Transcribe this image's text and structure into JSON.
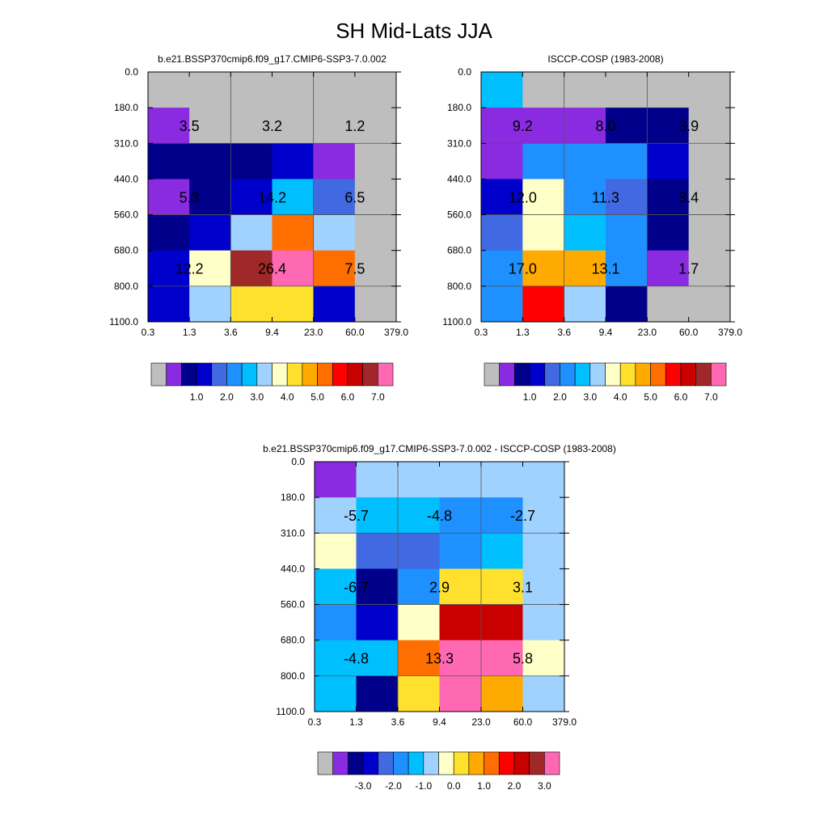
{
  "title": "SH Mid-Lats JJA",
  "palettes": {
    "abs": [
      "#bebebe",
      "#8a2be2",
      "#00008b",
      "#0000cd",
      "#4169e1",
      "#1e90ff",
      "#00bfff",
      "#a0d2ff",
      "#ffffc8",
      "#ffe12d",
      "#ffaa00",
      "#ff6e00",
      "#ff0000",
      "#c80000",
      "#a02828",
      "#ff69b4"
    ],
    "diff": [
      "#bebebe",
      "#8a2be2",
      "#00008b",
      "#0000cd",
      "#4169e1",
      "#1e90ff",
      "#00bfff",
      "#a0d2ff",
      "#ffffc8",
      "#ffe12d",
      "#ffaa00",
      "#ff6e00",
      "#ff0000",
      "#c80000",
      "#a02828",
      "#ff69b4"
    ]
  },
  "chart_data": [
    {
      "type": "heatmap",
      "title": "b.e21.BSSP370cmip6.f09_g17.CMIP6-SSP3-7.0.002",
      "x_ticks": [
        "0.3",
        "1.3",
        "3.6",
        "9.4",
        "23.0",
        "60.0",
        "379.0"
      ],
      "y_ticks": [
        "0.0",
        "180.0",
        "310.0",
        "440.0",
        "560.0",
        "680.0",
        "800.0",
        "1100.0"
      ],
      "cells": [
        [
          0,
          0,
          0,
          0,
          0,
          0
        ],
        [
          1,
          0,
          0,
          0,
          0,
          0
        ],
        [
          2,
          2,
          2,
          3,
          1,
          0
        ],
        [
          1,
          2,
          3,
          6,
          4,
          0
        ],
        [
          2,
          3,
          7,
          11,
          7,
          0
        ],
        [
          3,
          8,
          14,
          15,
          11,
          0
        ],
        [
          3,
          7,
          9,
          9,
          3,
          0
        ]
      ],
      "annotations": [
        {
          "row": 1,
          "col": 1,
          "text": "3.5"
        },
        {
          "row": 1,
          "col": 3,
          "text": "3.2"
        },
        {
          "row": 1,
          "col": 5,
          "text": "1.2"
        },
        {
          "row": 3,
          "col": 1,
          "text": "5.3"
        },
        {
          "row": 3,
          "col": 3,
          "text": "14.2"
        },
        {
          "row": 3,
          "col": 5,
          "text": "6.5"
        },
        {
          "row": 5,
          "col": 1,
          "text": "12.2"
        },
        {
          "row": 5,
          "col": 3,
          "text": "26.4"
        },
        {
          "row": 5,
          "col": 5,
          "text": "7.5"
        }
      ],
      "colorbar_labels": [
        "1.0",
        "2.0",
        "3.0",
        "4.0",
        "5.0",
        "6.0",
        "7.0"
      ],
      "palette": "abs"
    },
    {
      "type": "heatmap",
      "title": "ISCCP-COSP (1983-2008)",
      "x_ticks": [
        "0.3",
        "1.3",
        "3.6",
        "9.4",
        "23.0",
        "60.0",
        "379.0"
      ],
      "y_ticks": [
        "0.0",
        "180.0",
        "310.0",
        "440.0",
        "560.0",
        "680.0",
        "800.0",
        "1100.0"
      ],
      "cells": [
        [
          6,
          0,
          0,
          0,
          0,
          0
        ],
        [
          1,
          1,
          1,
          2,
          2,
          0
        ],
        [
          1,
          5,
          5,
          5,
          3,
          0
        ],
        [
          3,
          8,
          5,
          4,
          2,
          0
        ],
        [
          4,
          8,
          6,
          5,
          2,
          0
        ],
        [
          5,
          10,
          10,
          5,
          1,
          0
        ],
        [
          5,
          12,
          7,
          2,
          0,
          0
        ]
      ],
      "annotations": [
        {
          "row": 1,
          "col": 1,
          "text": "9.2"
        },
        {
          "row": 1,
          "col": 3,
          "text": "8.0"
        },
        {
          "row": 1,
          "col": 5,
          "text": "3.9"
        },
        {
          "row": 3,
          "col": 1,
          "text": "12.0"
        },
        {
          "row": 3,
          "col": 3,
          "text": "11.3"
        },
        {
          "row": 3,
          "col": 5,
          "text": "3.4"
        },
        {
          "row": 5,
          "col": 1,
          "text": "17.0"
        },
        {
          "row": 5,
          "col": 3,
          "text": "13.1"
        },
        {
          "row": 5,
          "col": 5,
          "text": "1.7"
        }
      ],
      "colorbar_labels": [
        "1.0",
        "2.0",
        "3.0",
        "4.0",
        "5.0",
        "6.0",
        "7.0"
      ],
      "palette": "abs"
    },
    {
      "type": "heatmap",
      "title": "b.e21.BSSP370cmip6.f09_g17.CMIP6-SSP3-7.0.002 - ISCCP-COSP (1983-2008)",
      "x_ticks": [
        "0.3",
        "1.3",
        "3.6",
        "9.4",
        "23.0",
        "60.0",
        "379.0"
      ],
      "y_ticks": [
        "0.0",
        "180.0",
        "310.0",
        "440.0",
        "560.0",
        "680.0",
        "800.0",
        "1100.0"
      ],
      "cells": [
        [
          1,
          7,
          7,
          7,
          7,
          7
        ],
        [
          7,
          6,
          6,
          5,
          5,
          7
        ],
        [
          8,
          4,
          4,
          5,
          6,
          7
        ],
        [
          6,
          2,
          5,
          9,
          9,
          7
        ],
        [
          5,
          3,
          8,
          13,
          13,
          7
        ],
        [
          6,
          6,
          11,
          15,
          15,
          8
        ],
        [
          6,
          2,
          9,
          15,
          10,
          7
        ]
      ],
      "annotations": [
        {
          "row": 1,
          "col": 1,
          "text": "-5.7"
        },
        {
          "row": 1,
          "col": 3,
          "text": "-4.8"
        },
        {
          "row": 1,
          "col": 5,
          "text": "-2.7"
        },
        {
          "row": 3,
          "col": 1,
          "text": "-6.7"
        },
        {
          "row": 3,
          "col": 3,
          "text": "2.9"
        },
        {
          "row": 3,
          "col": 5,
          "text": "3.1"
        },
        {
          "row": 5,
          "col": 1,
          "text": "-4.8"
        },
        {
          "row": 5,
          "col": 3,
          "text": "13.3"
        },
        {
          "row": 5,
          "col": 5,
          "text": "5.8"
        }
      ],
      "colorbar_labels": [
        "-3.0",
        "-2.0",
        "-1.0",
        "0.0",
        "1.0",
        "2.0",
        "3.0"
      ],
      "palette": "diff"
    }
  ]
}
